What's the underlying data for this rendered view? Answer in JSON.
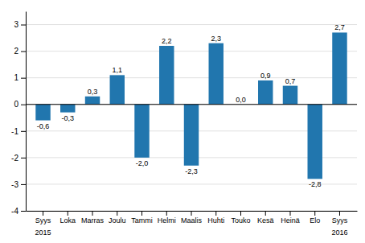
{
  "chart_data": {
    "type": "bar",
    "categories": [
      "Syys",
      "Loka",
      "Marras",
      "Joulu",
      "Tammi",
      "Helmi",
      "Maalis",
      "Huhti",
      "Touko",
      "Kesä",
      "Heinä",
      "Elo",
      "Syys"
    ],
    "values": [
      -0.6,
      -0.3,
      0.3,
      1.1,
      -2.0,
      2.2,
      -2.3,
      2.3,
      0.0,
      0.9,
      0.7,
      -2.8,
      2.7
    ],
    "value_labels": [
      "-0,6",
      "-0,3",
      "0,3",
      "1,1",
      "-2,0",
      "2,2",
      "-2,3",
      "2,3",
      "0,0",
      "0,9",
      "0,7",
      "-2,8",
      "2,7"
    ],
    "color": "#2176ae",
    "ylim": [
      -4,
      3.5
    ],
    "yticks": [
      -4,
      -3,
      -2,
      -1,
      0,
      1,
      2,
      3
    ],
    "grid": true,
    "data_labels": true,
    "annotations": [
      {
        "text": "2015",
        "x": 0
      },
      {
        "text": "2016",
        "x": 12
      }
    ]
  }
}
